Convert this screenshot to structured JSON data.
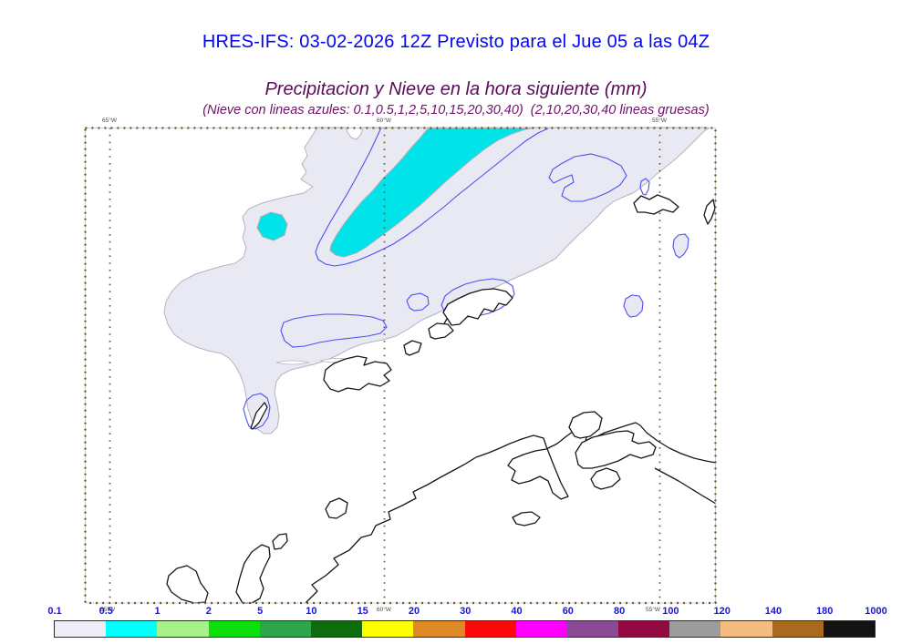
{
  "title": {
    "text": "HRES-IFS: 03-02-2026 12Z Previsto para el Jue 05 a las 04Z",
    "color": "#0404f0"
  },
  "subtitle": {
    "line1": "Precipitacion y Nieve en la hora siguiente (mm)",
    "line2": "(Nieve con lineas azules: 0.1,0.5,1,2,5,10,15,20,30,40)  (2,10,20,30,40 lineas gruesas)",
    "color1": "#5c0a5c",
    "color2": "#70106a"
  },
  "map": {
    "lon_labels_top": [
      "65°W",
      "60°W",
      "55°W"
    ],
    "lon_labels_bottom": [
      "65°W",
      "60°W",
      "55°W"
    ],
    "colors": {
      "precip_light": "#e9e9f3",
      "precip_light_edge": "#b4b4be",
      "precip_cyan": "#00e4e9",
      "precip_cyan_edge": "#a9aeb6",
      "snow_contour_blue": "#4b50f0",
      "coastline_black": "#161616",
      "grid_brown": "#6b5820",
      "frame_brown": "#5f4c1d"
    }
  },
  "colorbar": {
    "unit": "mm",
    "labels": [
      "0.1",
      "0.5",
      "1",
      "2",
      "5",
      "10",
      "15",
      "20",
      "30",
      "40",
      "60",
      "80",
      "100",
      "120",
      "140",
      "180",
      "1000"
    ],
    "colors": [
      "#ededf6",
      "#00ffff",
      "#a8f08a",
      "#0bdf0b",
      "#2fa54b",
      "#0e6c0e",
      "#ffff00",
      "#de8a26",
      "#fb0a0a",
      "#ff00ff",
      "#8a4a96",
      "#930a41",
      "#9c9c9c",
      "#f4bc80",
      "#a96a1d",
      "#131313"
    ],
    "label_color": "#1414e6"
  }
}
